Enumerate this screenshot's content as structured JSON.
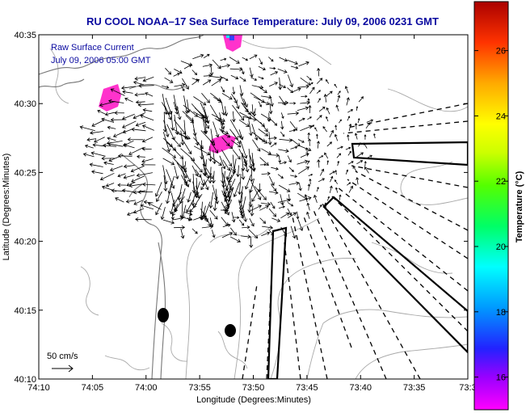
{
  "title": "RU COOL  NOAA–17  Sea Surface Temperature:  July 09, 2006 0231 GMT",
  "legend": {
    "line1": "Raw Surface Current",
    "line2": "July 09, 2006 05:00 GMT"
  },
  "scale": {
    "label": "50 cm/s"
  },
  "x_axis": {
    "label": "Longitude (Degrees:Minutes)",
    "ticks": [
      "74:10",
      "74:05",
      "74:00",
      "73:55",
      "73:50",
      "73:45",
      "73:40",
      "73:35",
      "73:3"
    ]
  },
  "y_axis": {
    "label": "Latitude (Degrees:Minutes)",
    "ticks": [
      "40:35",
      "40:30",
      "40:25",
      "40:20",
      "40:15",
      "40:10"
    ]
  },
  "colorbar": {
    "label": "Temperature (°C)",
    "min": 15,
    "max": 27.5,
    "ticks": [
      "16",
      "18",
      "20",
      "22",
      "24",
      "26"
    ],
    "tick_values": [
      16,
      18,
      20,
      22,
      24,
      26
    ]
  },
  "colors": {
    "title": "#0a0aa0",
    "legend_text": "#0a0aa0",
    "contour": "#9a9a9a",
    "coast": "#777777",
    "sst_patch": "#ff33cc"
  }
}
